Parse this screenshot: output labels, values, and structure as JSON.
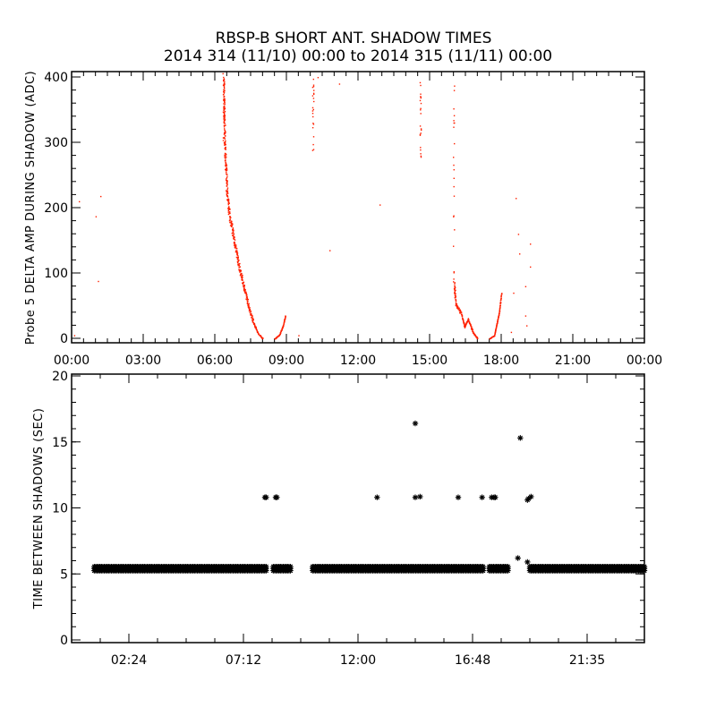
{
  "chart_data": [
    {
      "type": "scatter",
      "title": "RBSP-B SHORT ANT. SHADOW TIMES",
      "subtitle": "2014 314 (11/10) 00:00 to 2014 315 (11/11) 00:00",
      "xlabel": "",
      "ylabel": "Probe 5 DELTA AMP DURING SHADOW (ADC)",
      "xlim_hours": [
        0,
        24
      ],
      "ylim": [
        0,
        400
      ],
      "x_tick_labels": [
        "00:00",
        "03:00",
        "06:00",
        "09:00",
        "12:00",
        "15:00",
        "18:00",
        "21:00",
        "00:00"
      ],
      "x_tick_hours": [
        0,
        3,
        6,
        9,
        12,
        15,
        18,
        21,
        24
      ],
      "y_tick_labels": [
        "0",
        "100",
        "200",
        "300",
        "400"
      ],
      "y_ticks": [
        0,
        100,
        200,
        300,
        400
      ],
      "point_color": "#ff2000",
      "curves_hours_adc": [
        [
          [
            6.35,
            400
          ],
          [
            6.4,
            300
          ],
          [
            6.5,
            220
          ],
          [
            6.6,
            190
          ],
          [
            6.8,
            150
          ],
          [
            7.0,
            110
          ],
          [
            7.2,
            80
          ],
          [
            7.4,
            50
          ],
          [
            7.6,
            25
          ],
          [
            7.8,
            8
          ],
          [
            8.0,
            0
          ]
        ],
        [
          [
            8.5,
            0
          ],
          [
            8.7,
            6
          ],
          [
            8.85,
            20
          ],
          [
            8.95,
            36
          ]
        ],
        [
          [
            16.0,
            85
          ],
          [
            16.1,
            50
          ],
          [
            16.3,
            40
          ],
          [
            16.45,
            18
          ],
          [
            16.6,
            30
          ],
          [
            16.8,
            10
          ],
          [
            17.0,
            0
          ]
        ],
        [
          [
            17.5,
            0
          ],
          [
            17.7,
            5
          ],
          [
            17.9,
            40
          ],
          [
            18.0,
            70
          ]
        ]
      ],
      "vertical_streaks_hours_adc": [
        {
          "x": 6.35,
          "y": [
            300,
            400
          ]
        },
        {
          "x": 10.1,
          "y": [
            270,
            400
          ]
        },
        {
          "x": 14.6,
          "y": [
            270,
            400
          ]
        },
        {
          "x": 16.0,
          "y": [
            90,
            400
          ]
        }
      ],
      "isolated_points_hours_adc": [
        [
          0.3,
          210
        ],
        [
          1.0,
          187
        ],
        [
          1.2,
          218
        ],
        [
          1.1,
          88
        ],
        [
          0.1,
          5
        ],
        [
          9.5,
          5
        ],
        [
          10.8,
          135
        ],
        [
          11.2,
          390
        ],
        [
          12.9,
          205
        ],
        [
          18.6,
          215
        ],
        [
          18.7,
          160
        ],
        [
          18.75,
          130
        ],
        [
          19.0,
          80
        ],
        [
          19.0,
          35
        ],
        [
          19.05,
          20
        ],
        [
          19.2,
          145
        ],
        [
          19.2,
          110
        ],
        [
          18.4,
          10
        ],
        [
          18.5,
          70
        ],
        [
          10.3,
          400
        ]
      ]
    },
    {
      "type": "scatter",
      "title": "",
      "xlabel": "",
      "ylabel": "TIME BETWEEN SHADOWS (SEC)",
      "xlim_hours": [
        0,
        24
      ],
      "ylim": [
        0,
        20
      ],
      "x_tick_labels": [
        "02:24",
        "07:12",
        "12:00",
        "16:48",
        "21:35"
      ],
      "x_tick_hours": [
        2.4,
        7.2,
        12,
        16.8,
        21.6
      ],
      "y_tick_labels": [
        "0",
        "5",
        "10",
        "15",
        "20"
      ],
      "y_ticks": [
        0,
        5,
        10,
        15,
        20
      ],
      "marker": "asterisk",
      "point_color": "#000000",
      "bands_5_4_sec_hours": [
        [
          0.95,
          8.2
        ],
        [
          8.45,
          9.2
        ],
        [
          10.1,
          17.3
        ],
        [
          17.5,
          18.3
        ],
        [
          19.2,
          24
        ]
      ],
      "band_value": 5.4,
      "outliers_hours_sec": [
        [
          8.1,
          10.8
        ],
        [
          8.15,
          10.8
        ],
        [
          8.55,
          10.8
        ],
        [
          8.6,
          10.8
        ],
        [
          12.8,
          10.8
        ],
        [
          14.4,
          10.8
        ],
        [
          14.4,
          16.4
        ],
        [
          14.6,
          10.85
        ],
        [
          16.2,
          10.8
        ],
        [
          17.2,
          10.8
        ],
        [
          17.6,
          10.8
        ],
        [
          17.7,
          10.8
        ],
        [
          17.75,
          10.8
        ],
        [
          18.7,
          6.2
        ],
        [
          18.8,
          15.3
        ],
        [
          19.1,
          5.9
        ],
        [
          19.1,
          10.6
        ],
        [
          19.15,
          10.7
        ],
        [
          19.25,
          10.85
        ]
      ]
    }
  ]
}
